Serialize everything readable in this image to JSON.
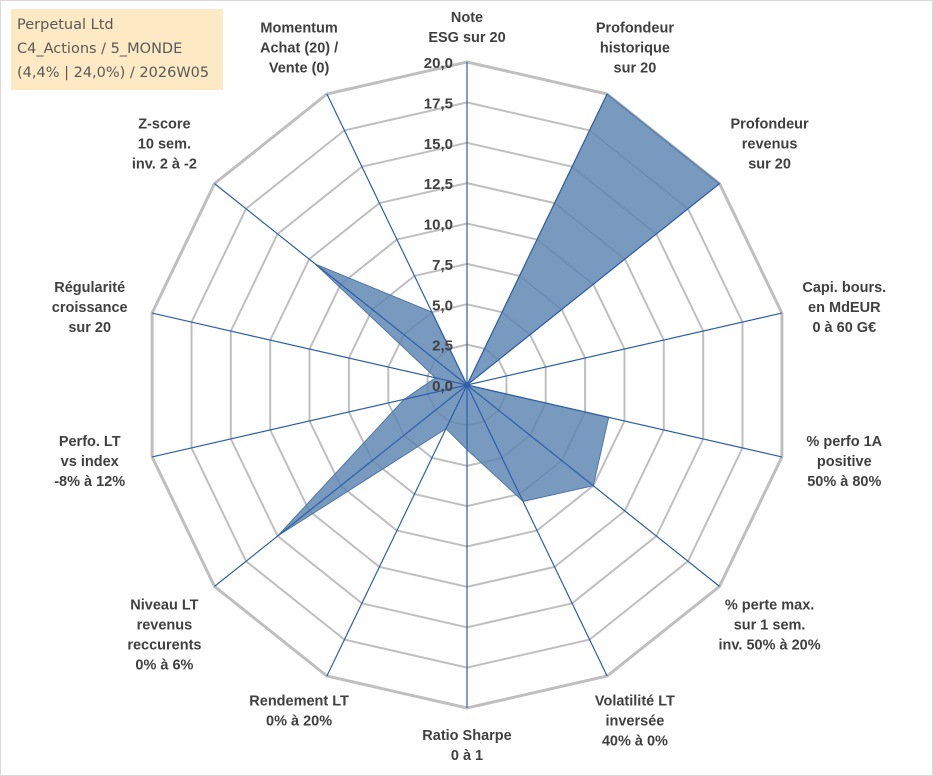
{
  "info": {
    "line1": "Perpetual Ltd",
    "line2": "C4_Actions / 5_MONDE",
    "line3": "(4,4% | 24,0%) / 2026W05"
  },
  "chart_data": {
    "type": "radar",
    "title": "",
    "range": [
      0,
      20
    ],
    "ticks": [
      "0,0",
      "2,5",
      "5,0",
      "7,5",
      "10,0",
      "12,5",
      "15,0",
      "17,5",
      "20,0"
    ],
    "tick_values": [
      0,
      2.5,
      5,
      7.5,
      10,
      12.5,
      15,
      17.5,
      20
    ],
    "axes": [
      {
        "lines": [
          "Note",
          "ESG sur 20"
        ],
        "value": 0
      },
      {
        "lines": [
          "Profondeur",
          "historique",
          "sur 20"
        ],
        "value": 20
      },
      {
        "lines": [
          "Profondeur",
          "revenus",
          "sur 20"
        ],
        "value": 20
      },
      {
        "lines": [
          "Capi. bours.",
          "en MdEUR",
          "0 à 60 G€"
        ],
        "value": 0
      },
      {
        "lines": [
          "% perfo 1A",
          "positive",
          "50% à 80%"
        ],
        "value": 9
      },
      {
        "lines": [
          "% perte max.",
          "sur 1 sem.",
          "inv. 50% à 20%"
        ],
        "value": 10
      },
      {
        "lines": [
          "Volatilité LT",
          "inversée",
          "40% à 0%"
        ],
        "value": 8
      },
      {
        "lines": [
          "Ratio Sharpe",
          "0 à 1"
        ],
        "value": 4
      },
      {
        "lines": [
          "Rendement LT",
          "0% à 20%"
        ],
        "value": 3
      },
      {
        "lines": [
          "Niveau LT",
          "revenus",
          "reccurents",
          "0% à 6%"
        ],
        "value": 15
      },
      {
        "lines": [
          "Perfo. LT",
          "vs index",
          "-8% à 12%"
        ],
        "value": 4
      },
      {
        "lines": [
          "Régularité",
          "croissance",
          "sur 20"
        ],
        "value": 2
      },
      {
        "lines": [
          "Z-score",
          "10 sem.",
          "inv. 2 à -2"
        ],
        "value": 12
      },
      {
        "lines": [
          "Momentum",
          "Achat (20) /",
          "Vente (0)"
        ],
        "value": 5
      }
    ],
    "series": [
      {
        "name": "Perpetual Ltd",
        "color": "#5b84b1"
      }
    ],
    "grid_color": "#bfbfbf",
    "axis_color": "#2e5fa8"
  }
}
